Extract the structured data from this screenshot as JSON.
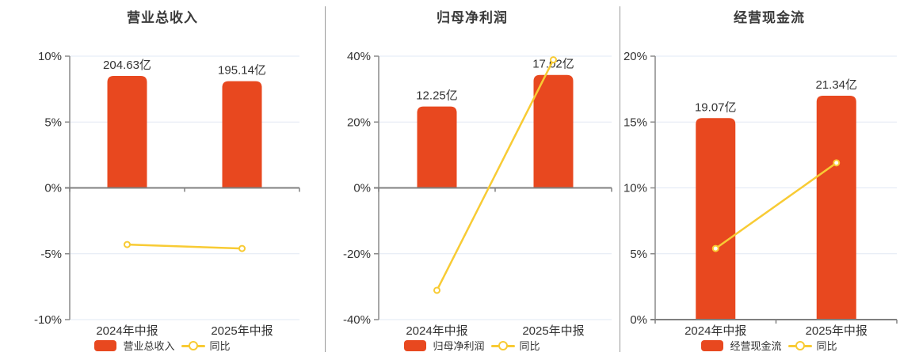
{
  "colors": {
    "bar": "#E8481F",
    "line": "#F8CB34",
    "marker_fill": "#FFFFFF",
    "grid": "#E2E8F4",
    "zero_axis": "#808080",
    "axis": "#8A8A8A",
    "divider": "#9A9A9A",
    "text": "#333333",
    "title": "#3A3A3A"
  },
  "chart_data": [
    {
      "type": "bar+line",
      "title": "营业总收入",
      "categories": [
        "2024年中报",
        "2025年中报"
      ],
      "ylim": [
        -10,
        10
      ],
      "grid": true,
      "legend_position": "bottom",
      "yticks": [
        {
          "label": "10%",
          "value": 10
        },
        {
          "label": "5%",
          "value": 5
        },
        {
          "label": "0%",
          "value": 0
        },
        {
          "label": "-5%",
          "value": -5
        },
        {
          "label": "-10%",
          "value": -10
        }
      ],
      "series": [
        {
          "name": "营业总收入",
          "type": "bar",
          "unit": "亿",
          "values": [
            204.63,
            195.14
          ],
          "value_labels": [
            "204.63亿",
            "195.14亿"
          ],
          "heights_on_pct_axis": [
            8.5,
            8.1
          ]
        },
        {
          "name": "同比",
          "type": "line",
          "unit": "%",
          "values": [
            -4.3,
            -4.6
          ]
        }
      ]
    },
    {
      "type": "bar+line",
      "title": "归母净利润",
      "categories": [
        "2024年中报",
        "2025年中报"
      ],
      "ylim": [
        -40,
        40
      ],
      "grid": true,
      "legend_position": "bottom",
      "yticks": [
        {
          "label": "40%",
          "value": 40
        },
        {
          "label": "20%",
          "value": 20
        },
        {
          "label": "0%",
          "value": 0
        },
        {
          "label": "-20%",
          "value": -20
        },
        {
          "label": "-40%",
          "value": -40
        }
      ],
      "series": [
        {
          "name": "归母净利润",
          "type": "bar",
          "unit": "亿",
          "values": [
            12.25,
            17.02
          ],
          "value_labels": [
            "12.25亿",
            "17.02亿"
          ],
          "heights_on_pct_axis": [
            24.7,
            34.3
          ]
        },
        {
          "name": "同比",
          "type": "line",
          "unit": "%",
          "values": [
            -31.1,
            38.9
          ]
        }
      ]
    },
    {
      "type": "bar+line",
      "title": "经营现金流",
      "categories": [
        "2024年中报",
        "2025年中报"
      ],
      "ylim": [
        0,
        20
      ],
      "grid": true,
      "legend_position": "bottom",
      "yticks": [
        {
          "label": "20%",
          "value": 20
        },
        {
          "label": "15%",
          "value": 15
        },
        {
          "label": "10%",
          "value": 10
        },
        {
          "label": "5%",
          "value": 5
        },
        {
          "label": "0%",
          "value": 0
        }
      ],
      "series": [
        {
          "name": "经营现金流",
          "type": "bar",
          "unit": "亿",
          "values": [
            19.07,
            21.34
          ],
          "value_labels": [
            "19.07亿",
            "21.34亿"
          ],
          "heights_on_pct_axis": [
            15.3,
            17.0
          ]
        },
        {
          "name": "同比",
          "type": "line",
          "unit": "%",
          "values": [
            5.4,
            11.9
          ]
        }
      ]
    }
  ]
}
